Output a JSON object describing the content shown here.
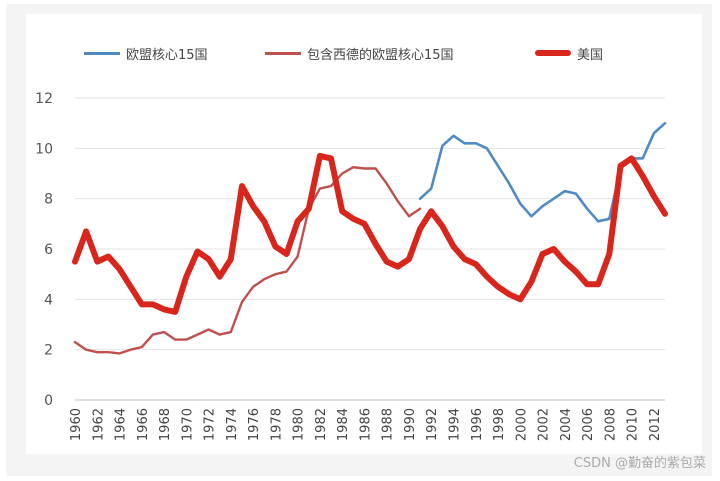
{
  "chart_data": {
    "type": "line",
    "title": "",
    "xlabel": "",
    "ylabel": "",
    "ylim": [
      0,
      12
    ],
    "xlim": [
      1960,
      2013
    ],
    "yticks": [
      0,
      2,
      4,
      6,
      8,
      10,
      12
    ],
    "xticks": [
      1960,
      1962,
      1964,
      1966,
      1968,
      1970,
      1972,
      1974,
      1976,
      1978,
      1980,
      1982,
      1984,
      1986,
      1988,
      1990,
      1992,
      1994,
      1996,
      1998,
      2000,
      2002,
      2004,
      2006,
      2008,
      2010,
      2012
    ],
    "grid": true,
    "legend_position": "top",
    "series": [
      {
        "name": "欧盟核心15国",
        "color": "#4e8bc4",
        "x": [
          1991,
          1992,
          1993,
          1994,
          1995,
          1996,
          1997,
          1998,
          1999,
          2000,
          2001,
          2002,
          2003,
          2004,
          2005,
          2006,
          2007,
          2008,
          2009,
          2010,
          2011,
          2012,
          2013
        ],
        "values": [
          8.0,
          8.4,
          10.1,
          10.5,
          10.2,
          10.2,
          10.0,
          9.3,
          8.6,
          7.8,
          7.3,
          7.7,
          8.0,
          8.3,
          8.2,
          7.6,
          7.1,
          7.2,
          9.2,
          9.6,
          9.6,
          10.6,
          11.0
        ]
      },
      {
        "name": "包含西德的欧盟核心15国",
        "color": "#c0504d",
        "x": [
          1960,
          1961,
          1962,
          1963,
          1964,
          1965,
          1966,
          1967,
          1968,
          1969,
          1970,
          1971,
          1972,
          1973,
          1974,
          1975,
          1976,
          1977,
          1978,
          1979,
          1980,
          1981,
          1982,
          1983,
          1984,
          1985,
          1986,
          1987,
          1988,
          1989,
          1990,
          1991
        ],
        "values": [
          2.3,
          2.0,
          1.9,
          1.9,
          1.85,
          2.0,
          2.1,
          2.6,
          2.7,
          2.4,
          2.4,
          2.6,
          2.8,
          2.6,
          2.7,
          3.9,
          4.5,
          4.8,
          5.0,
          5.1,
          5.7,
          7.6,
          8.4,
          8.5,
          9.0,
          9.25,
          9.2,
          9.2,
          8.6,
          7.9,
          7.3,
          7.6
        ]
      },
      {
        "name": "美国",
        "color": "#d9261c",
        "x": [
          1960,
          1961,
          1962,
          1963,
          1964,
          1965,
          1966,
          1967,
          1968,
          1969,
          1970,
          1971,
          1972,
          1973,
          1974,
          1975,
          1976,
          1977,
          1978,
          1979,
          1980,
          1981,
          1982,
          1983,
          1984,
          1985,
          1986,
          1987,
          1988,
          1989,
          1990,
          1991,
          1992,
          1993,
          1994,
          1995,
          1996,
          1997,
          1998,
          1999,
          2000,
          2001,
          2002,
          2003,
          2004,
          2005,
          2006,
          2007,
          2008,
          2009,
          2010,
          2011,
          2012,
          2013
        ],
        "values": [
          5.5,
          6.7,
          5.5,
          5.7,
          5.2,
          4.5,
          3.8,
          3.8,
          3.6,
          3.5,
          4.9,
          5.9,
          5.6,
          4.9,
          5.6,
          8.5,
          7.7,
          7.1,
          6.1,
          5.8,
          7.1,
          7.6,
          9.7,
          9.6,
          7.5,
          7.2,
          7.0,
          6.2,
          5.5,
          5.3,
          5.6,
          6.8,
          7.5,
          6.9,
          6.1,
          5.6,
          5.4,
          4.9,
          4.5,
          4.2,
          4.0,
          4.7,
          5.8,
          6.0,
          5.5,
          5.1,
          4.6,
          4.6,
          5.8,
          9.3,
          9.6,
          8.9,
          8.1,
          7.4
        ]
      }
    ]
  },
  "watermark": "CSDN @勤奋的紫包菜"
}
